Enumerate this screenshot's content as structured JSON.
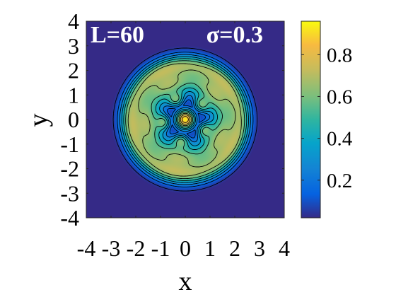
{
  "chart_data": {
    "type": "heatmap",
    "plot_type": "filled contour",
    "title": "",
    "xlabel": "x",
    "ylabel": "y",
    "xlim": [
      -4,
      4
    ],
    "ylim": [
      -4,
      4
    ],
    "x_ticks": [
      -4,
      -3,
      -2,
      -1,
      0,
      1,
      2,
      3,
      4
    ],
    "y_ticks": [
      -4,
      -3,
      -2,
      -1,
      0,
      1,
      2,
      3,
      4
    ],
    "x_tick_labels": [
      "-4",
      "-3",
      "-2",
      "-1",
      "0",
      "1",
      "2",
      "3",
      "4"
    ],
    "y_tick_labels": [
      "-4",
      "-3",
      "-2",
      "-1",
      "0",
      "1",
      "2",
      "3",
      "4"
    ],
    "grid": false,
    "colormap": "parula",
    "colorbar": {
      "placement": "right",
      "range": [
        0.02,
        0.96
      ],
      "ticks": [
        0.2,
        0.4,
        0.6,
        0.8
      ],
      "tick_labels": [
        "0.2",
        "0.4",
        "0.6",
        "0.8"
      ]
    },
    "annotations": [
      {
        "id": "L",
        "text": "L=60"
      },
      {
        "id": "sigma",
        "text": "σ=0.3"
      }
    ],
    "features": [
      {
        "name": "central peak",
        "x": 0,
        "y": 0,
        "value": 0.95
      },
      {
        "name": "inner ring",
        "radius": 0.85,
        "value": 0.2,
        "lobes": 5
      },
      {
        "name": "middle ring",
        "radius": 1.45,
        "value": 0.55,
        "lobes": 5
      },
      {
        "name": "outer ring",
        "radius": 2.2,
        "value": 0.6,
        "lobes": 5
      },
      {
        "name": "disc edge",
        "radius": 3.1,
        "value": 0.02
      }
    ]
  },
  "colors": {
    "background": "#352a87",
    "contour_line": "#000000",
    "annotation_text": "#ffffff"
  }
}
